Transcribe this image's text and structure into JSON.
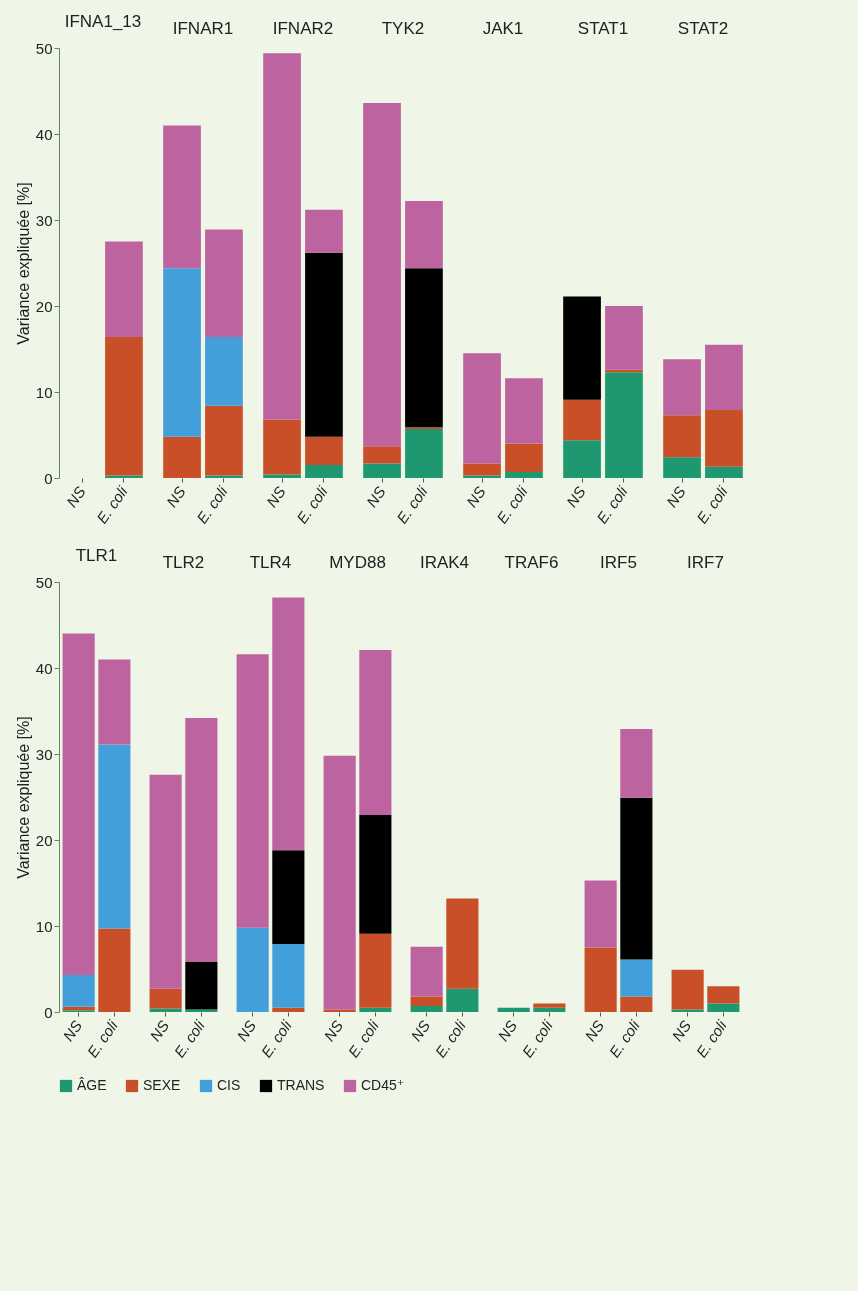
{
  "chart_data": [
    {
      "type": "bar",
      "title": "IFNA1_13",
      "ylabel": "Variance expliquée [%]",
      "categories": [
        "NS",
        "E. coli"
      ],
      "stacked": true,
      "ylim": [
        0,
        50
      ],
      "yticks": [
        0,
        10,
        20,
        30,
        40,
        50
      ],
      "series": [
        {
          "color": "#1d9870",
          "values": [
            null,
            0.3
          ]
        },
        {
          "color": "#c94f28",
          "values": [
            null,
            16.1
          ]
        },
        {
          "color": "#439fd9",
          "values": [
            null,
            null
          ]
        },
        {
          "color": "#000000",
          "values": [
            null,
            null
          ]
        },
        {
          "color": "#bd64a0",
          "values": [
            null,
            11.1
          ]
        }
      ]
    },
    {
      "type": "bar",
      "title": "IFNAR1",
      "categories": [
        "NS",
        "E. coli"
      ],
      "stacked": true,
      "ylim": [
        0,
        50
      ],
      "yticks": [
        0,
        10,
        20,
        30,
        40,
        50
      ],
      "tick_labels": "x",
      "series": [
        {
          "color": "#1d9870",
          "values": [
            null,
            0.3
          ]
        },
        {
          "color": "#c94f28",
          "values": [
            4.8,
            8.1
          ]
        },
        {
          "color": "#439fd9",
          "values": [
            19.6,
            8.0
          ]
        },
        {
          "color": "#000000",
          "values": [
            null,
            null
          ]
        },
        {
          "color": "#bd64a0",
          "values": [
            16.6,
            12.5
          ]
        }
      ]
    },
    {
      "type": "bar",
      "title": "IFNAR2",
      "categories": [
        "NS",
        "E. coli"
      ],
      "stacked": true,
      "ylim": [
        0,
        50
      ],
      "yticks": [
        0,
        10,
        20,
        30,
        40,
        50
      ],
      "tick_labels": "x",
      "series": [
        {
          "color": "#1d9870",
          "values": [
            0.4,
            1.5
          ]
        },
        {
          "color": "#c94f28",
          "values": [
            6.4,
            3.3
          ]
        },
        {
          "color": "#439fd9",
          "values": [
            null,
            null
          ]
        },
        {
          "color": "#000000",
          "values": [
            null,
            21.4
          ]
        },
        {
          "color": "#bd64a0",
          "values": [
            42.6,
            5.0
          ]
        }
      ]
    },
    {
      "type": "bar",
      "title": "TYK2",
      "categories": [
        "NS",
        "E. coli"
      ],
      "stacked": true,
      "ylim": [
        0,
        50
      ],
      "yticks": [
        0,
        10,
        20,
        30,
        40,
        50
      ],
      "tick_labels": "x",
      "series": [
        {
          "color": "#1d9870",
          "values": [
            1.7,
            5.7
          ]
        },
        {
          "color": "#c94f28",
          "values": [
            2.0,
            0.2
          ]
        },
        {
          "color": "#439fd9",
          "values": [
            null,
            null
          ]
        },
        {
          "color": "#000000",
          "values": [
            null,
            18.5
          ]
        },
        {
          "color": "#bd64a0",
          "values": [
            39.9,
            7.8
          ]
        }
      ]
    },
    {
      "type": "bar",
      "title": "JAK1",
      "categories": [
        "NS",
        "E. coli"
      ],
      "stacked": true,
      "ylim": [
        0,
        50
      ],
      "yticks": [
        0,
        10,
        20,
        30,
        40,
        50
      ],
      "tick_labels": "x",
      "series": [
        {
          "color": "#1d9870",
          "values": [
            0.3,
            0.7
          ]
        },
        {
          "color": "#c94f28",
          "values": [
            1.4,
            3.3
          ]
        },
        {
          "color": "#439fd9",
          "values": [
            null,
            null
          ]
        },
        {
          "color": "#000000",
          "values": [
            null,
            null
          ]
        },
        {
          "color": "#bd64a0",
          "values": [
            12.8,
            7.6
          ]
        }
      ]
    },
    {
      "type": "bar",
      "title": "STAT1",
      "categories": [
        "NS",
        "E. coli"
      ],
      "stacked": true,
      "ylim": [
        0,
        50
      ],
      "yticks": [
        0,
        10,
        20,
        30,
        40,
        50
      ],
      "tick_labels": "x",
      "series": [
        {
          "color": "#1d9870",
          "values": [
            4.4,
            12.3
          ]
        },
        {
          "color": "#c94f28",
          "values": [
            4.7,
            0.3
          ]
        },
        {
          "color": "#439fd9",
          "values": [
            null,
            null
          ]
        },
        {
          "color": "#000000",
          "values": [
            12.0,
            null
          ]
        },
        {
          "color": "#bd64a0",
          "values": [
            null,
            7.4
          ]
        }
      ]
    },
    {
      "type": "bar",
      "title": "STAT2",
      "categories": [
        "NS",
        "E. coli"
      ],
      "stacked": true,
      "ylim": [
        0,
        50
      ],
      "yticks": [
        0,
        10,
        20,
        30,
        40,
        50
      ],
      "tick_labels": "x",
      "series": [
        {
          "color": "#1d9870",
          "values": [
            2.4,
            1.3
          ]
        },
        {
          "color": "#c94f28",
          "values": [
            4.9,
            6.6
          ]
        },
        {
          "color": "#439fd9",
          "values": [
            null,
            null
          ]
        },
        {
          "color": "#000000",
          "values": [
            null,
            null
          ]
        },
        {
          "color": "#bd64a0",
          "values": [
            6.5,
            7.6
          ]
        }
      ]
    },
    {
      "type": "bar",
      "title": "TLR1",
      "ylabel": "Variance expliquée [%]",
      "categories": [
        "NS",
        "E. coli"
      ],
      "stacked": true,
      "ylim": [
        0,
        50
      ],
      "yticks": [
        0,
        10,
        20,
        30,
        40,
        50
      ],
      "legend": "bottom",
      "series": [
        {
          "name": "ÂGE",
          "color": "#1d9870",
          "values": [
            0.2,
            null
          ]
        },
        {
          "name": "SEXE",
          "color": "#c94f28",
          "values": [
            0.4,
            9.7
          ]
        },
        {
          "name": "CIS",
          "color": "#439fd9",
          "values": [
            3.7,
            21.4
          ]
        },
        {
          "name": "TRANS",
          "color": "#000000",
          "values": [
            null,
            null
          ]
        },
        {
          "name": "CD45⁺",
          "color": "#bd64a0",
          "values": [
            39.7,
            9.9
          ]
        }
      ]
    },
    {
      "type": "bar",
      "title": "TLR2",
      "categories": [
        "NS",
        "E. coli"
      ],
      "stacked": true,
      "ylim": [
        0,
        50
      ],
      "yticks": [
        0,
        10,
        20,
        30,
        40,
        50
      ],
      "tick_labels": "x",
      "series": [
        {
          "color": "#1d9870",
          "values": [
            0.4,
            0.3
          ]
        },
        {
          "color": "#c94f28",
          "values": [
            2.3,
            null
          ]
        },
        {
          "color": "#439fd9",
          "values": [
            null,
            null
          ]
        },
        {
          "color": "#000000",
          "values": [
            null,
            5.5
          ]
        },
        {
          "color": "#bd64a0",
          "values": [
            24.9,
            28.4
          ]
        }
      ]
    },
    {
      "type": "bar",
      "title": "TLR4",
      "categories": [
        "NS",
        "E. coli"
      ],
      "stacked": true,
      "ylim": [
        0,
        50
      ],
      "yticks": [
        0,
        10,
        20,
        30,
        40,
        50
      ],
      "tick_labels": "x",
      "series": [
        {
          "color": "#1d9870",
          "values": [
            null,
            null
          ]
        },
        {
          "color": "#c94f28",
          "values": [
            null,
            0.5
          ]
        },
        {
          "color": "#439fd9",
          "values": [
            9.8,
            7.4
          ]
        },
        {
          "color": "#000000",
          "values": [
            null,
            10.9
          ]
        },
        {
          "color": "#bd64a0",
          "values": [
            31.8,
            29.4
          ]
        }
      ]
    },
    {
      "type": "bar",
      "title": "MYD88",
      "categories": [
        "NS",
        "E. coli"
      ],
      "stacked": true,
      "ylim": [
        0,
        50
      ],
      "yticks": [
        0,
        10,
        20,
        30,
        40,
        50
      ],
      "tick_labels": "x",
      "series": [
        {
          "color": "#1d9870",
          "values": [
            null,
            0.5
          ]
        },
        {
          "color": "#c94f28",
          "values": [
            0.3,
            8.6
          ]
        },
        {
          "color": "#439fd9",
          "values": [
            null,
            null
          ]
        },
        {
          "color": "#000000",
          "values": [
            null,
            13.8
          ]
        },
        {
          "color": "#bd64a0",
          "values": [
            29.5,
            19.2
          ]
        }
      ]
    },
    {
      "type": "bar",
      "title": "IRAK4",
      "categories": [
        "NS",
        "E. coli"
      ],
      "stacked": true,
      "ylim": [
        0,
        50
      ],
      "yticks": [
        0,
        10,
        20,
        30,
        40,
        50
      ],
      "tick_labels": "x",
      "series": [
        {
          "color": "#1d9870",
          "values": [
            0.7,
            2.7
          ]
        },
        {
          "color": "#c94f28",
          "values": [
            1.1,
            10.5
          ]
        },
        {
          "color": "#439fd9",
          "values": [
            null,
            null
          ]
        },
        {
          "color": "#000000",
          "values": [
            null,
            null
          ]
        },
        {
          "color": "#bd64a0",
          "values": [
            5.8,
            null
          ]
        }
      ]
    },
    {
      "type": "bar",
      "title": "TRAF6",
      "categories": [
        "NS",
        "E. coli"
      ],
      "stacked": true,
      "ylim": [
        0,
        50
      ],
      "yticks": [
        0,
        10,
        20,
        30,
        40,
        50
      ],
      "tick_labels": "x",
      "series": [
        {
          "color": "#1d9870",
          "values": [
            0.5,
            0.5
          ]
        },
        {
          "color": "#c94f28",
          "values": [
            null,
            0.5
          ]
        },
        {
          "color": "#439fd9",
          "values": [
            null,
            null
          ]
        },
        {
          "color": "#000000",
          "values": [
            null,
            null
          ]
        },
        {
          "color": "#bd64a0",
          "values": [
            null,
            null
          ]
        }
      ]
    },
    {
      "type": "bar",
      "title": "IRF5",
      "categories": [
        "NS",
        "E. coli"
      ],
      "stacked": true,
      "ylim": [
        0,
        50
      ],
      "yticks": [
        0,
        10,
        20,
        30,
        40,
        50
      ],
      "tick_labels": "x",
      "series": [
        {
          "color": "#1d9870",
          "values": [
            null,
            null
          ]
        },
        {
          "color": "#c94f28",
          "values": [
            7.5,
            1.8
          ]
        },
        {
          "color": "#439fd9",
          "values": [
            null,
            4.3
          ]
        },
        {
          "color": "#000000",
          "values": [
            null,
            18.8
          ]
        },
        {
          "color": "#bd64a0",
          "values": [
            7.8,
            8.0
          ]
        }
      ]
    },
    {
      "type": "bar",
      "title": "IRF7",
      "categories": [
        "NS",
        "E. coli"
      ],
      "stacked": true,
      "ylim": [
        0,
        50
      ],
      "yticks": [
        0,
        10,
        20,
        30,
        40,
        50
      ],
      "tick_labels": "x",
      "series": [
        {
          "color": "#1d9870",
          "values": [
            0.3,
            1.0
          ]
        },
        {
          "color": "#c94f28",
          "values": [
            4.6,
            2.0
          ]
        },
        {
          "color": "#439fd9",
          "values": [
            null,
            null
          ]
        },
        {
          "color": "#000000",
          "values": [
            null,
            null
          ]
        },
        {
          "color": "#bd64a0",
          "values": [
            null,
            null
          ]
        }
      ]
    }
  ]
}
